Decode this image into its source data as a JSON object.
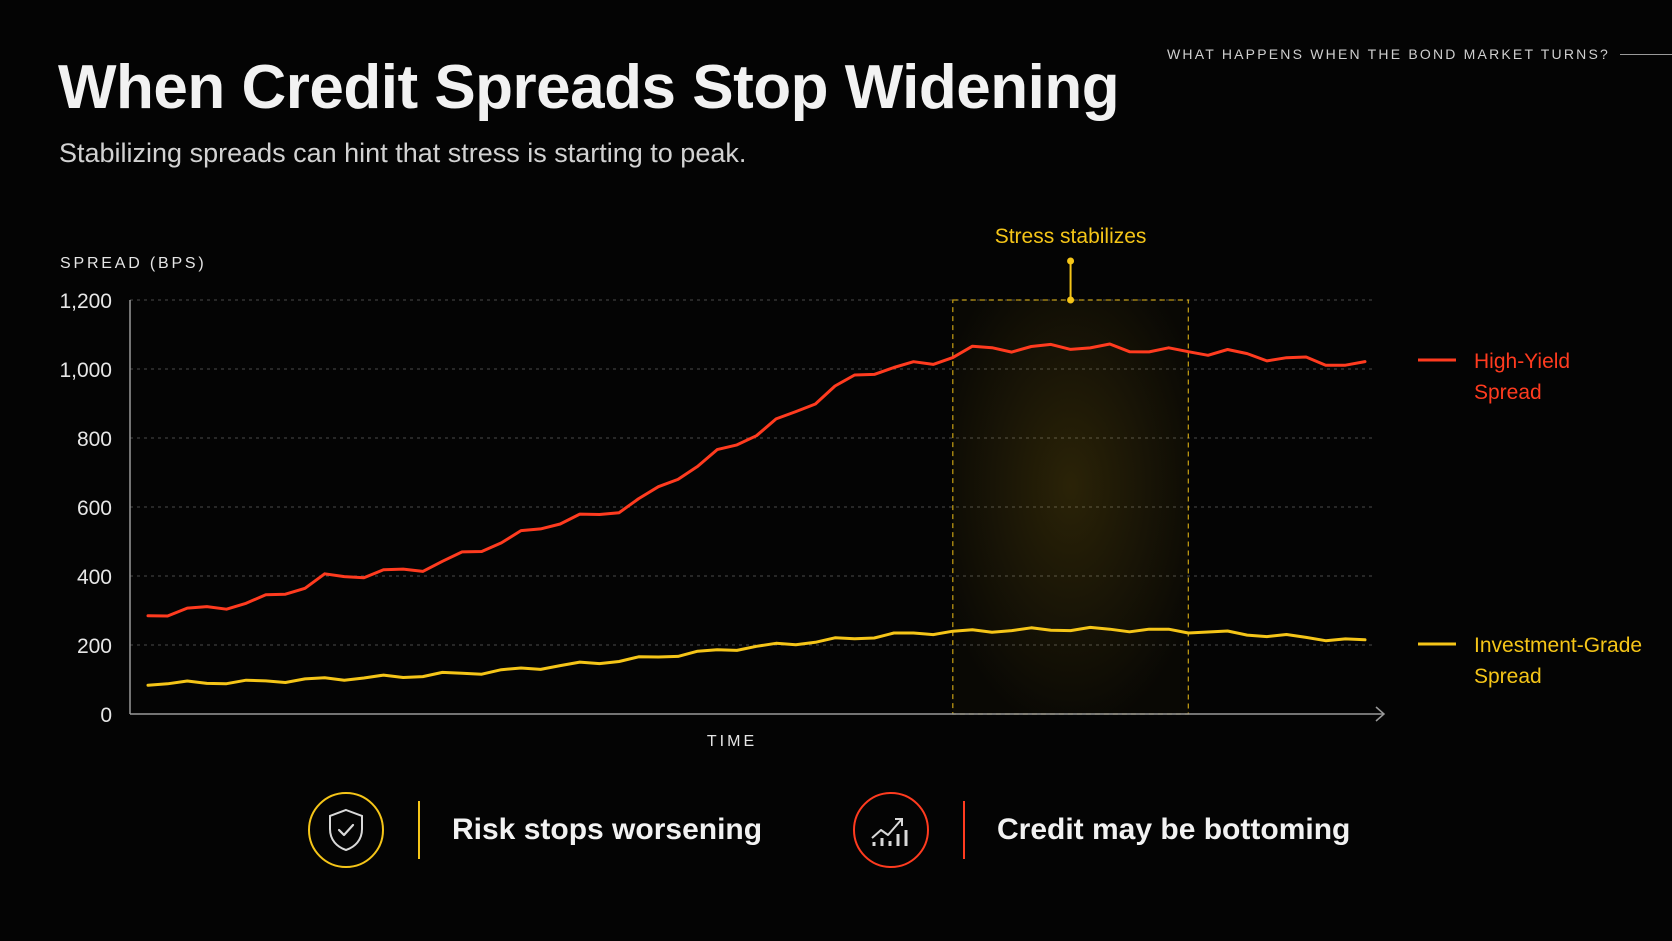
{
  "kicker": "WHAT HAPPENS WHEN THE BOND MARKET TURNS?",
  "title": "When Credit Spreads Stop Widening",
  "subtitle": "Stabilizing spreads can hint that stress is starting to peak.",
  "colors": {
    "high_yield": "#ff3b1f",
    "investment_grade": "#f5c518",
    "highlight": "#f5c518",
    "grid": "#4a4a4a"
  },
  "chart_data": {
    "type": "line",
    "ylabel": "SPREAD (BPS)",
    "xlabel": "TIME",
    "ylim": [
      0,
      1200
    ],
    "y_ticks": [
      0,
      200,
      400,
      600,
      800,
      1000,
      1200
    ],
    "y_tick_labels": [
      "0",
      "200",
      "400",
      "600",
      "800",
      "1,000",
      "1,200"
    ],
    "grid": true,
    "annotation": {
      "label": "Stress stabilizes",
      "x_range": [
        41,
        53
      ]
    },
    "series": [
      {
        "name": "High-Yield Spread",
        "name_lines": [
          "High-Yield",
          "Spread"
        ],
        "color_key": "high_yield",
        "x": [
          0,
          1,
          2,
          3,
          4,
          5,
          6,
          7,
          8,
          9,
          10,
          11,
          12,
          13,
          14,
          15,
          16,
          17,
          18,
          19,
          20,
          21,
          22,
          23,
          24,
          25,
          26,
          27,
          28,
          29,
          30,
          31,
          32,
          33,
          34,
          35,
          36,
          37,
          38,
          39,
          40,
          41,
          42,
          43,
          44,
          45,
          46,
          47,
          48,
          49,
          50,
          51,
          52,
          53,
          54,
          55,
          56,
          57,
          58,
          59,
          60,
          61,
          62
        ],
        "values": [
          285,
          295,
          300,
          305,
          315,
          320,
          335,
          355,
          370,
          395,
          400,
          405,
          410,
          415,
          425,
          440,
          460,
          480,
          500,
          520,
          540,
          560,
          570,
          575,
          595,
          620,
          650,
          690,
          720,
          755,
          785,
          815,
          845,
          875,
          910,
          945,
          975,
          995,
          1005,
          1010,
          1020,
          1040,
          1055,
          1062,
          1060,
          1058,
          1065,
          1068,
          1060,
          1062,
          1058,
          1055,
          1050,
          1052,
          1050,
          1048,
          1040,
          1035,
          1030,
          1025,
          1020,
          1015,
          1010
        ]
      },
      {
        "name": "Investment-Grade Spread",
        "name_lines": [
          "Investment-Grade",
          "Spread"
        ],
        "color_key": "investment_grade",
        "x": [
          0,
          1,
          2,
          3,
          4,
          5,
          6,
          7,
          8,
          9,
          10,
          11,
          12,
          13,
          14,
          15,
          16,
          17,
          18,
          19,
          20,
          21,
          22,
          23,
          24,
          25,
          26,
          27,
          28,
          29,
          30,
          31,
          32,
          33,
          34,
          35,
          36,
          37,
          38,
          39,
          40,
          41,
          42,
          43,
          44,
          45,
          46,
          47,
          48,
          49,
          50,
          51,
          52,
          53,
          54,
          55,
          56,
          57,
          58,
          59,
          60,
          61,
          62
        ],
        "values": [
          88,
          89,
          90,
          91,
          92,
          93,
          95,
          97,
          99,
          101,
          103,
          105,
          107,
          109,
          112,
          115,
          118,
          121,
          125,
          130,
          135,
          140,
          145,
          150,
          155,
          160,
          166,
          172,
          178,
          184,
          190,
          195,
          200,
          205,
          210,
          215,
          220,
          225,
          230,
          233,
          236,
          238,
          240,
          242,
          243,
          244,
          245,
          246,
          246,
          245,
          244,
          243,
          242,
          240,
          238,
          235,
          232,
          228,
          225,
          222,
          218,
          214,
          212
        ]
      }
    ]
  },
  "footer": {
    "item1": {
      "icon": "shield-check-icon",
      "label": "Risk stops worsening"
    },
    "item2": {
      "icon": "rising-chart-icon",
      "label": "Credit may be bottoming"
    }
  }
}
